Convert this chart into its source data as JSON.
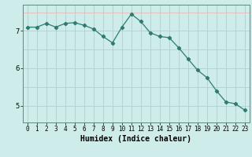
{
  "x": [
    0,
    1,
    2,
    3,
    4,
    5,
    6,
    7,
    8,
    9,
    10,
    11,
    12,
    13,
    14,
    15,
    16,
    17,
    18,
    19,
    20,
    21,
    22,
    23
  ],
  "y": [
    7.1,
    7.1,
    7.2,
    7.1,
    7.2,
    7.22,
    7.15,
    7.05,
    6.85,
    6.68,
    7.1,
    7.45,
    7.25,
    6.95,
    6.85,
    6.82,
    6.55,
    6.25,
    5.95,
    5.75,
    5.4,
    5.1,
    5.05,
    4.88
  ],
  "line_color": "#2d7d6e",
  "marker": "D",
  "markersize": 2.2,
  "linewidth": 0.9,
  "bg_color": "#ceecea",
  "grid_color_v": "#a8ccc8",
  "grid_color_h": "#e8b0b0",
  "xlabel": "Humidex (Indice chaleur)",
  "xlabel_fontsize": 7,
  "yticks": [
    5,
    6,
    7
  ],
  "xticks": [
    0,
    1,
    2,
    3,
    4,
    5,
    6,
    7,
    8,
    9,
    10,
    11,
    12,
    13,
    14,
    15,
    16,
    17,
    18,
    19,
    20,
    21,
    22,
    23
  ],
  "xlim": [
    -0.5,
    23.5
  ],
  "ylim": [
    4.55,
    7.7
  ],
  "tick_fontsize": 5.5,
  "spine_color": "#5a8a80"
}
